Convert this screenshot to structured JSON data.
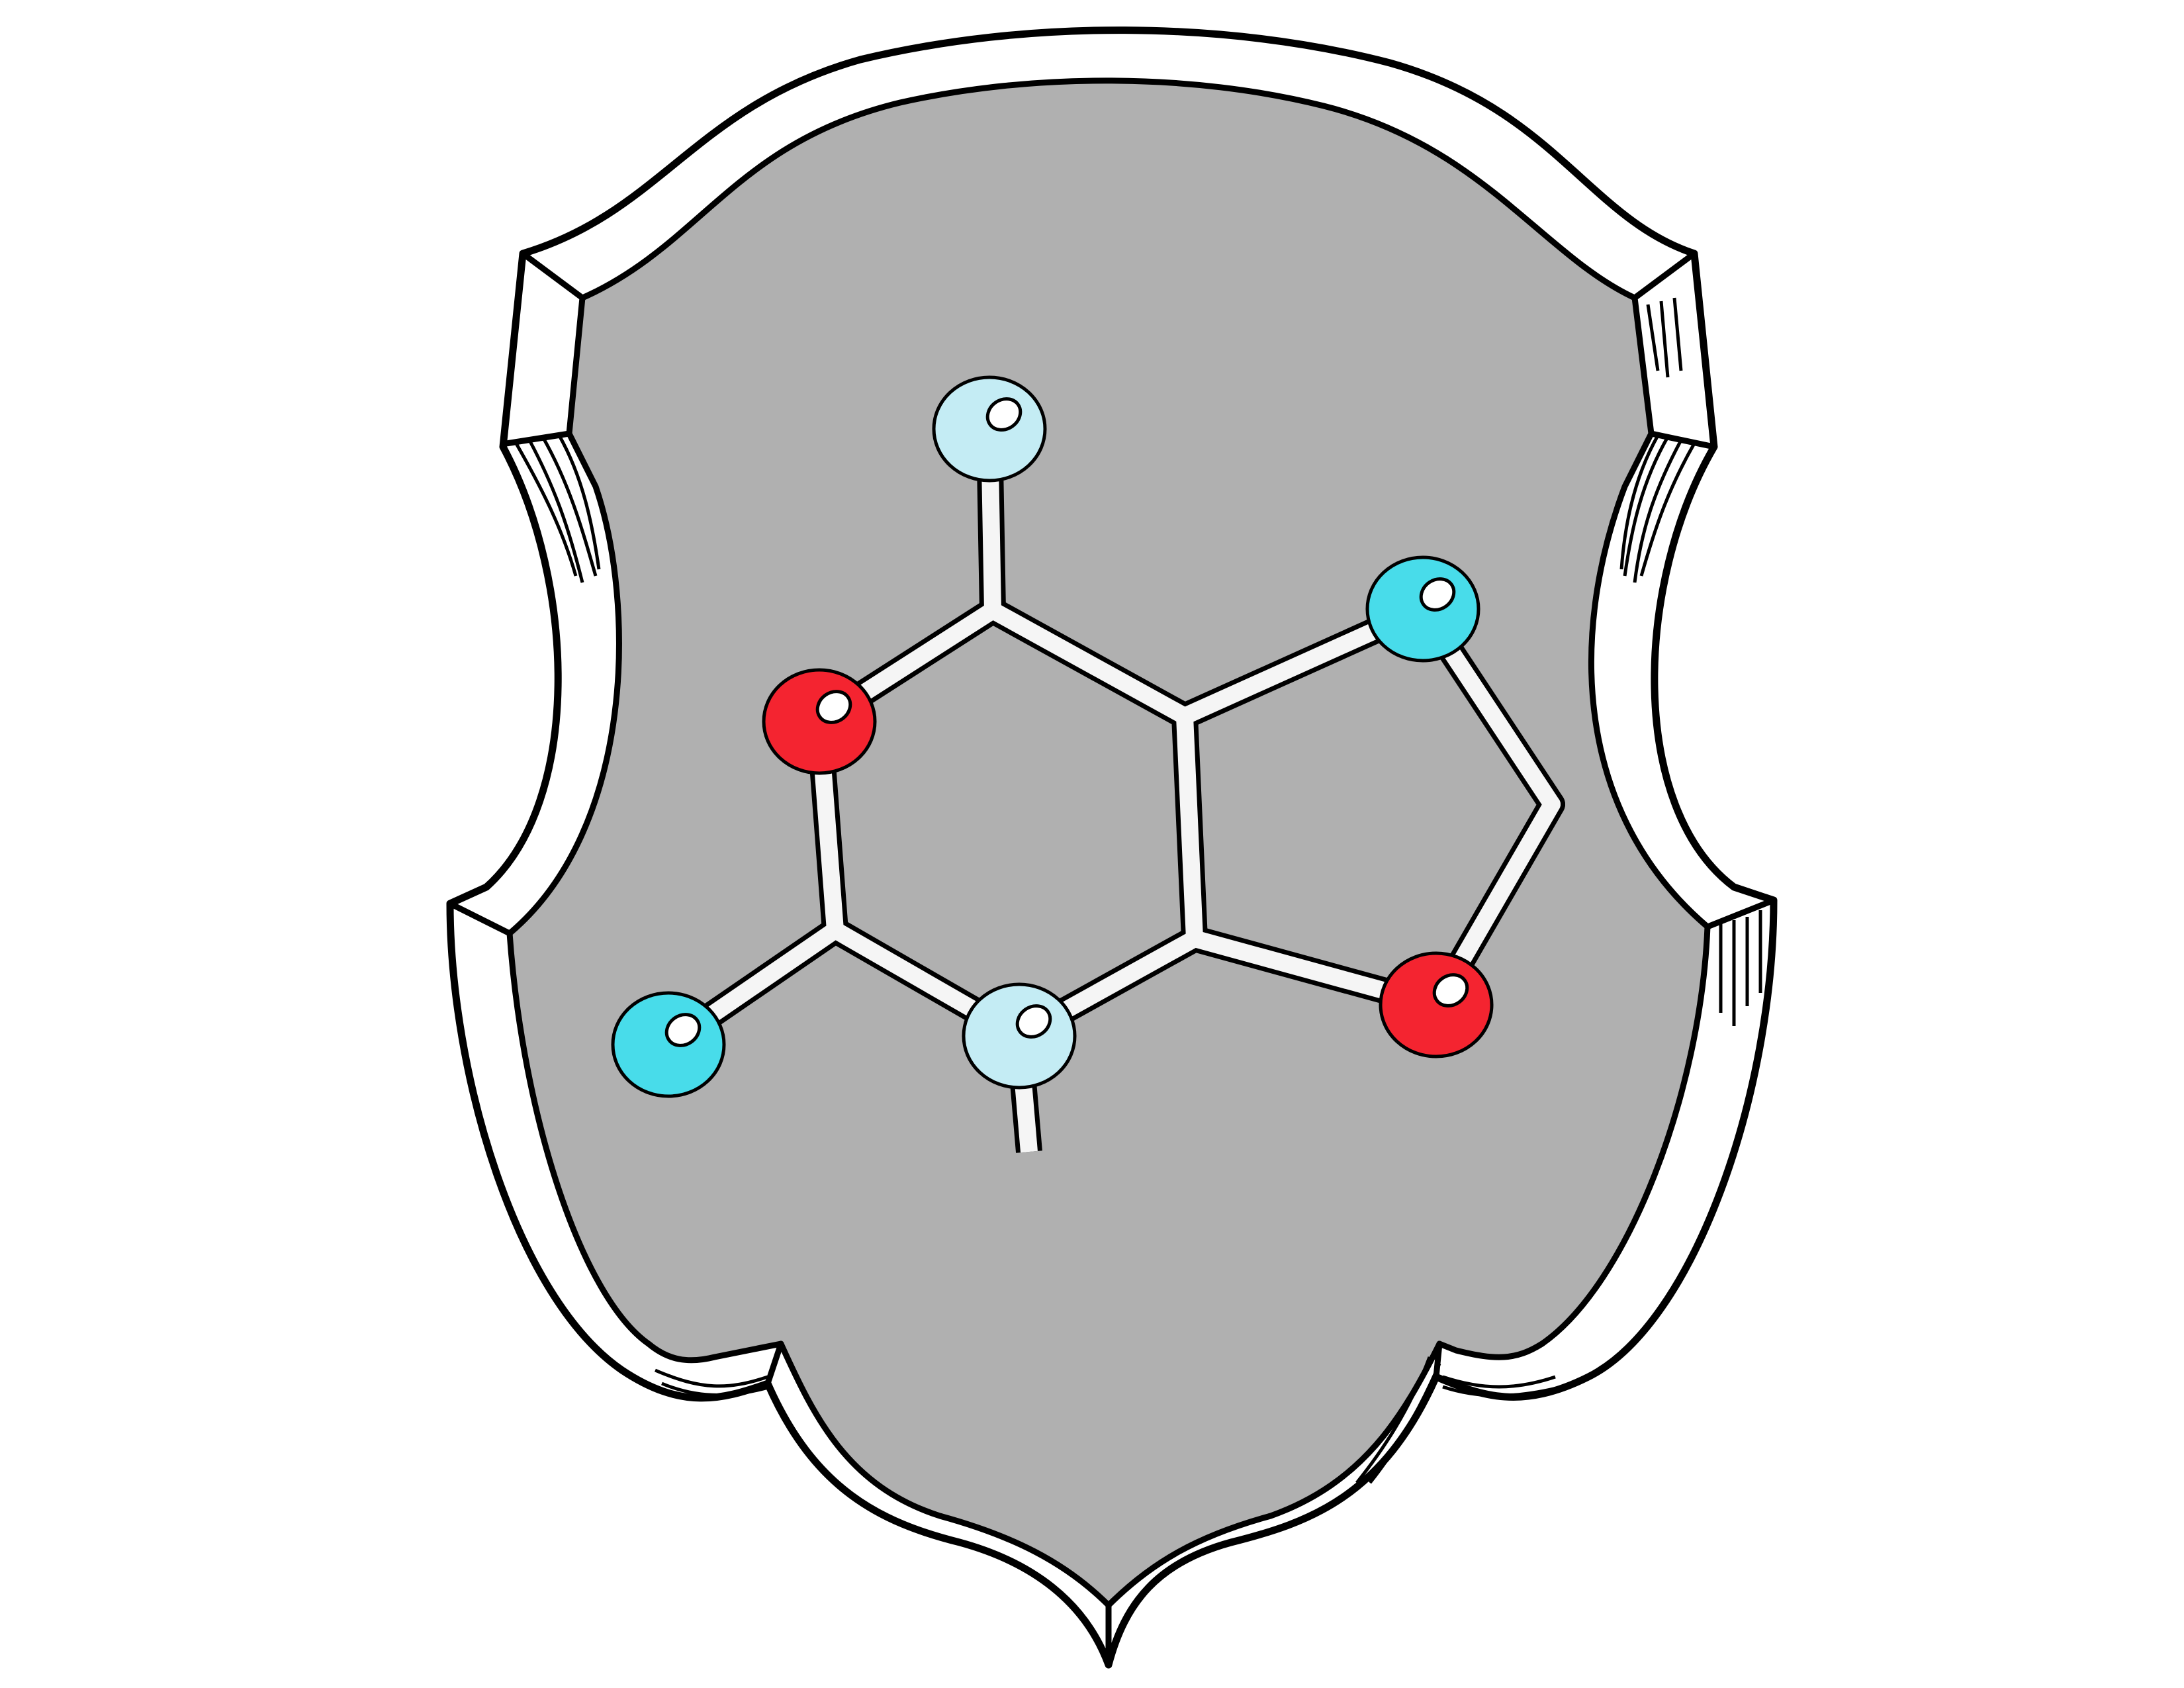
{
  "colors": {
    "background": "#ffffff",
    "shield_field": "#b0b0b0",
    "shield_rim": "#ffffff",
    "outline": "#000000",
    "bond": "#f5f5f5",
    "atom_red": "#f42430",
    "atom_cyan": "#48dcea",
    "atom_pale_blue": "#c4ecf4",
    "highlight": "#ffffff"
  },
  "molecule": {
    "atoms": [
      {
        "id": "top-atom",
        "color": "atom_pale_blue"
      },
      {
        "id": "ring-left-atom",
        "color": "atom_red"
      },
      {
        "id": "far-left-atom",
        "color": "atom_cyan"
      },
      {
        "id": "ring-bottom-atom",
        "color": "atom_pale_blue"
      },
      {
        "id": "upper-right-atom",
        "color": "atom_cyan"
      },
      {
        "id": "lower-right-atom",
        "color": "atom_red"
      }
    ],
    "bond_count": 12
  }
}
